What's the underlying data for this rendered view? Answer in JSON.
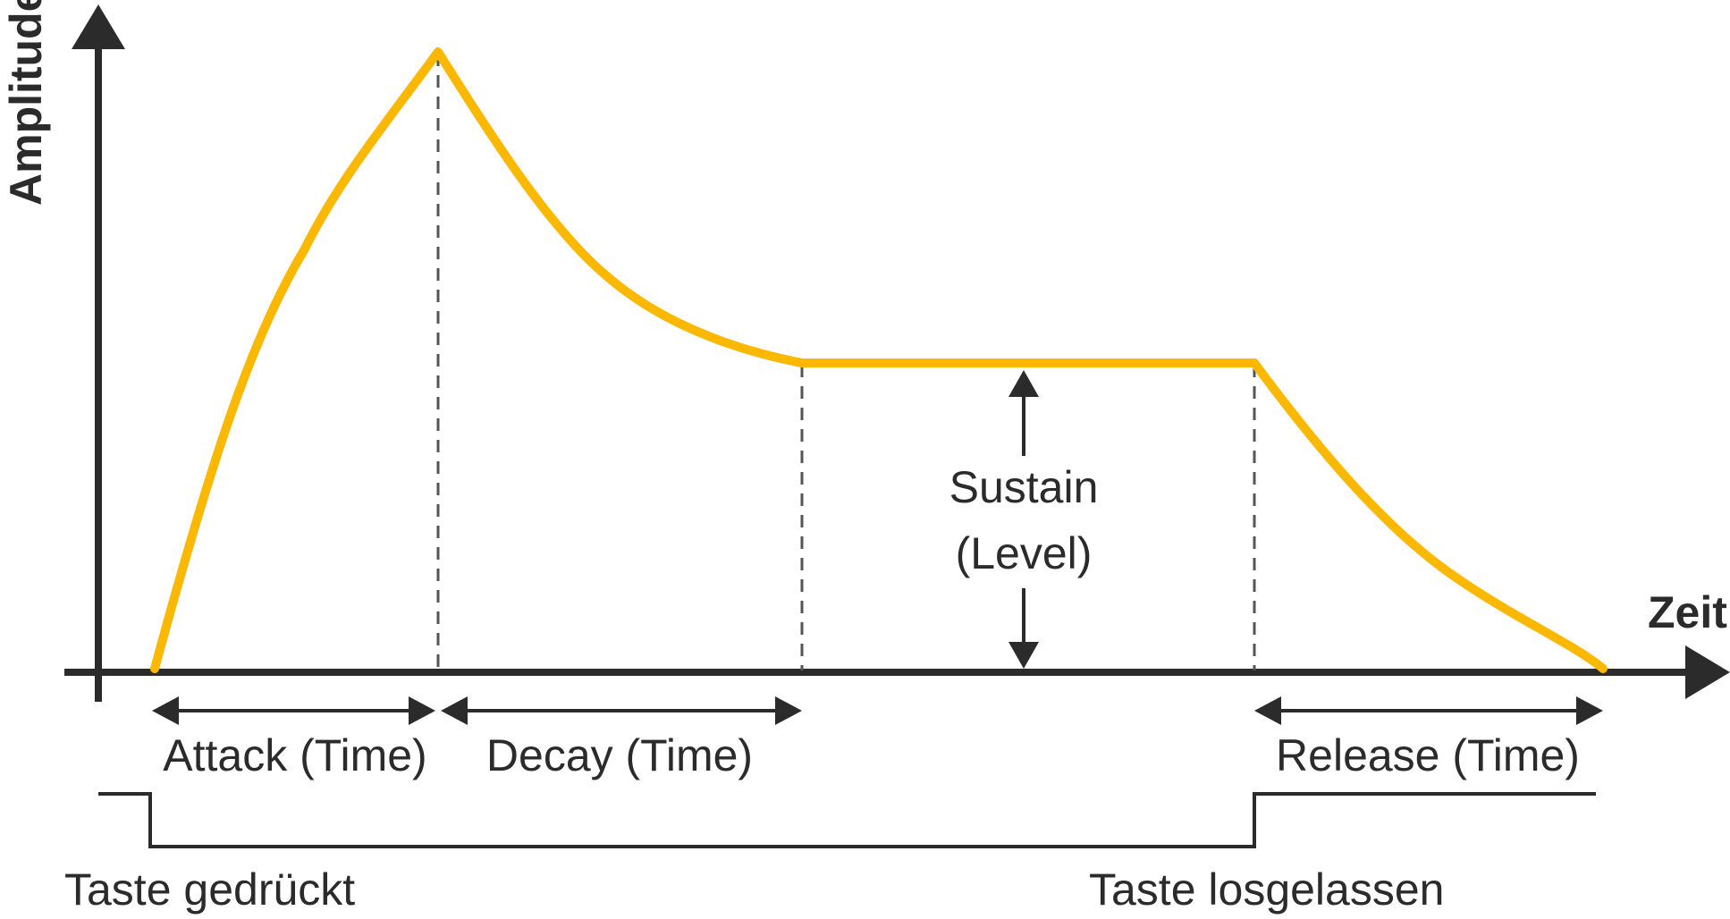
{
  "diagram": {
    "y_axis_label": "Amplitude",
    "x_axis_label": "Zeit",
    "sustain_label_line1": "Sustain",
    "sustain_label_line2": "(Level)",
    "attack_label": "Attack (Time)",
    "decay_label": "Decay (Time)",
    "release_label": "Release (Time)",
    "key_pressed_label": "Taste gedrückt",
    "key_released_label": "Taste losgelassen"
  },
  "colors": {
    "envelope": "#FBB800",
    "ink": "#2b2b2b"
  }
}
